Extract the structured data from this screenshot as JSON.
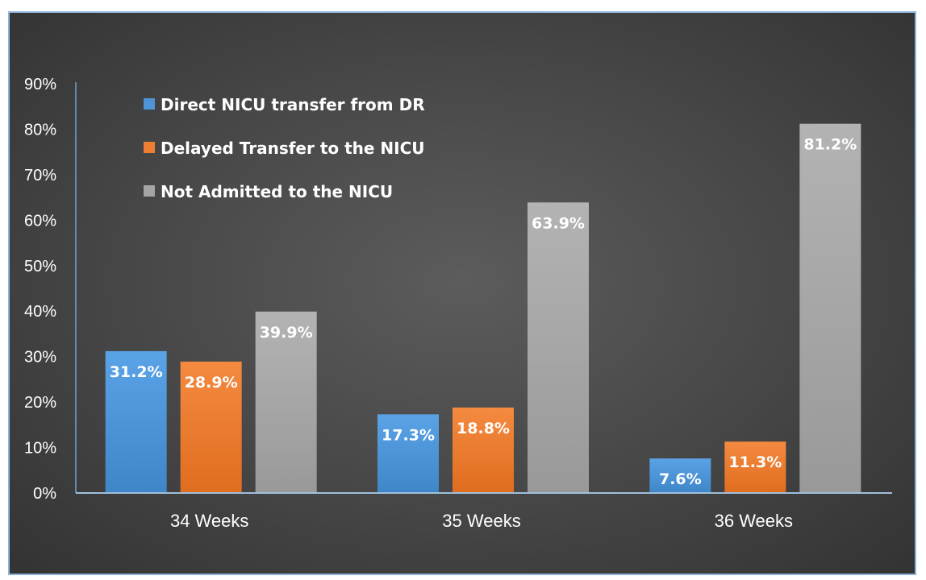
{
  "chart_data": {
    "type": "bar",
    "title": "",
    "xlabel": "",
    "ylabel": "",
    "categories": [
      "34 Weeks",
      "35 Weeks",
      "36 Weeks"
    ],
    "ylim": [
      0,
      90
    ],
    "yticks": [
      "0%",
      "10%",
      "20%",
      "30%",
      "40%",
      "50%",
      "60%",
      "70%",
      "80%",
      "90%"
    ],
    "legend_position": "top-left",
    "grid": false,
    "series": [
      {
        "name": "Direct NICU transfer from DR",
        "color": "#4e94d6",
        "values": [
          31.2,
          17.3,
          7.6
        ],
        "labels": [
          "31.2%",
          "17.3%",
          "7.6%"
        ]
      },
      {
        "name": "Delayed Transfer to the NICU",
        "color": "#ed7d31",
        "values": [
          28.9,
          18.8,
          11.3
        ],
        "labels": [
          "28.9%",
          "18.8%",
          "11.3%"
        ]
      },
      {
        "name": "Not Admitted to the NICU",
        "color": "#a5a5a5",
        "values": [
          39.9,
          63.9,
          81.2
        ],
        "labels": [
          "39.9%",
          "63.9%",
          "81.2%"
        ]
      }
    ]
  }
}
